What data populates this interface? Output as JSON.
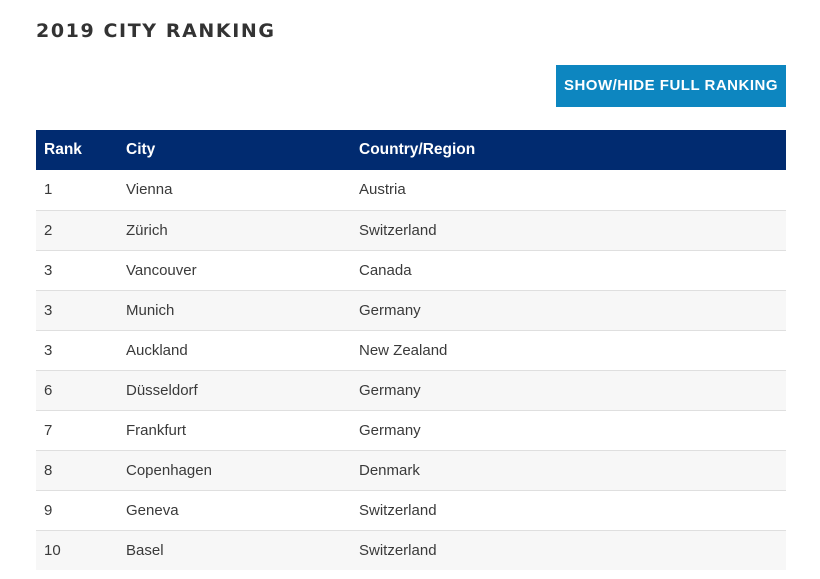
{
  "page": {
    "title": "2019 CITY RANKING",
    "toggle_button_label": "SHOW/HIDE FULL RANKING"
  },
  "colors": {
    "header_bg": "#012b70",
    "button_bg": "#0d86c0",
    "row_alt_bg": "#f7f7f7"
  },
  "table": {
    "headers": [
      "Rank",
      "City",
      "Country/Region"
    ],
    "rows": [
      {
        "rank": "1",
        "city": "Vienna",
        "country": "Austria"
      },
      {
        "rank": "2",
        "city": "Zürich",
        "country": "Switzerland"
      },
      {
        "rank": "3",
        "city": "Vancouver",
        "country": "Canada"
      },
      {
        "rank": "3",
        "city": "Munich",
        "country": "Germany"
      },
      {
        "rank": "3",
        "city": "Auckland",
        "country": "New Zealand"
      },
      {
        "rank": "6",
        "city": "Düsseldorf",
        "country": "Germany"
      },
      {
        "rank": "7",
        "city": "Frankfurt",
        "country": "Germany"
      },
      {
        "rank": "8",
        "city": "Copenhagen",
        "country": "Denmark"
      },
      {
        "rank": "9",
        "city": "Geneva",
        "country": "Switzerland"
      },
      {
        "rank": "10",
        "city": "Basel",
        "country": "Switzerland"
      }
    ]
  }
}
